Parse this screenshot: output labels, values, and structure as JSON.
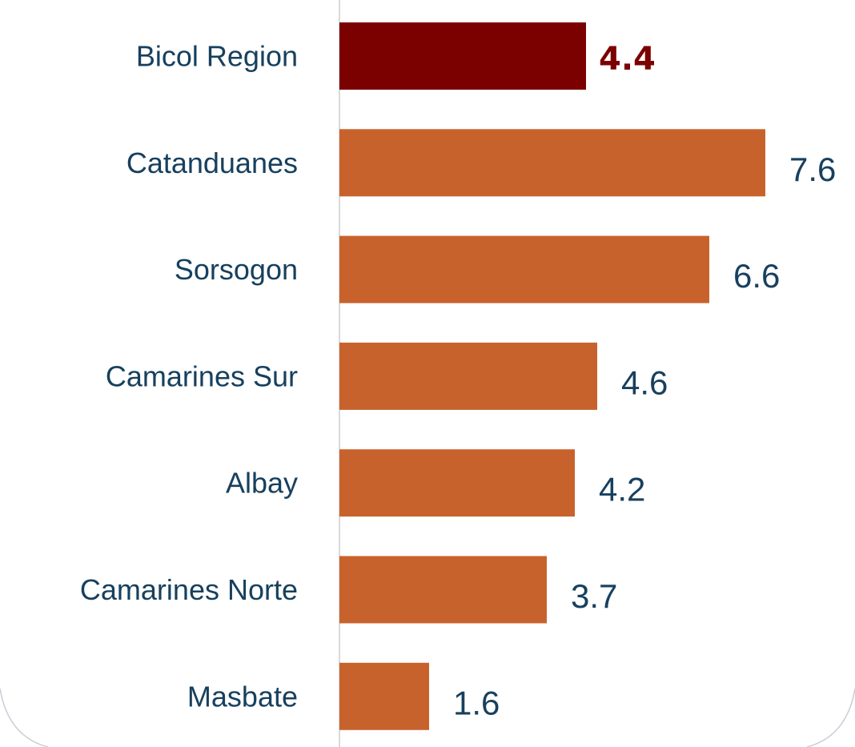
{
  "chart_data": {
    "type": "bar",
    "orientation": "horizontal",
    "categories": [
      "Bicol Region",
      "Catanduanes",
      "Sorsogon",
      "Camarines Sur",
      "Albay",
      "Camarines Norte",
      "Masbate"
    ],
    "values": [
      4.4,
      7.6,
      6.6,
      4.6,
      4.2,
      3.7,
      1.6
    ],
    "colors": [
      "#7b0000",
      "#c8622c",
      "#c8622c",
      "#c8622c",
      "#c8622c",
      "#c8622c",
      "#c8622c"
    ],
    "highlight": "Bicol Region"
  }
}
